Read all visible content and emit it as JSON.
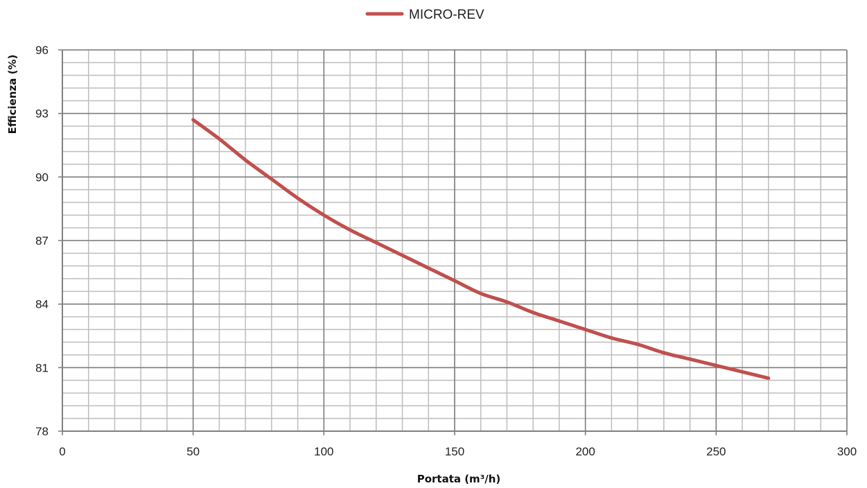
{
  "chart_data": {
    "type": "line",
    "title": "",
    "xlabel": "Portata (m³/h)",
    "ylabel": "Efficienza (%)",
    "xlim": [
      0,
      300
    ],
    "ylim": [
      78,
      96
    ],
    "x_ticks": [
      "0",
      "50",
      "100",
      "150",
      "200",
      "250",
      "300"
    ],
    "y_ticks": [
      "78",
      "81",
      "84",
      "87",
      "90",
      "93",
      "96"
    ],
    "x_minor_step": 10,
    "y_minor_step": 0.6,
    "grid": true,
    "legend": {
      "position": "top-center"
    },
    "series": [
      {
        "name": "MICRO-REV",
        "color": "#c0504d",
        "points": [
          [
            50,
            92.7
          ],
          [
            60,
            91.8
          ],
          [
            70,
            90.8
          ],
          [
            80,
            89.9
          ],
          [
            90,
            89.0
          ],
          [
            100,
            88.2
          ],
          [
            110,
            87.5
          ],
          [
            120,
            86.9
          ],
          [
            130,
            86.3
          ],
          [
            140,
            85.7
          ],
          [
            150,
            85.1
          ],
          [
            160,
            84.5
          ],
          [
            170,
            84.1
          ],
          [
            180,
            83.6
          ],
          [
            190,
            83.2
          ],
          [
            200,
            82.8
          ],
          [
            210,
            82.4
          ],
          [
            220,
            82.1
          ],
          [
            230,
            81.7
          ],
          [
            240,
            81.4
          ],
          [
            250,
            81.1
          ],
          [
            260,
            80.8
          ],
          [
            270,
            80.5
          ]
        ]
      }
    ]
  }
}
